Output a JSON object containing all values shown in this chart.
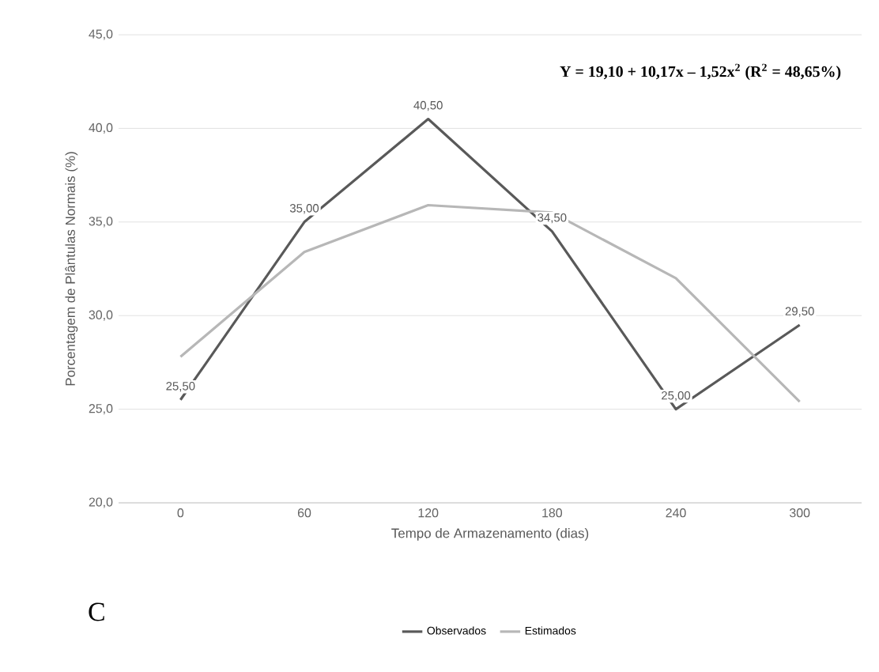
{
  "chart_data": {
    "type": "line",
    "xlabel": "Tempo de Armazenamento (dias)",
    "ylabel": "Porcentagem de Plântulas Normais (%)",
    "categories": [
      "0",
      "60",
      "120",
      "180",
      "240",
      "300"
    ],
    "series": [
      {
        "name": "Observados",
        "color": "#595959",
        "values": [
          25.5,
          35,
          40.5,
          34.5,
          25,
          29.5
        ],
        "value_labels": [
          "25,50",
          "35,00",
          "40,50",
          "34,50",
          "25,00",
          "29,50"
        ]
      },
      {
        "name": "Estimados",
        "color": "#b7b7b7",
        "values": [
          27.8,
          33.4,
          35.9,
          35.5,
          32.0,
          25.4
        ]
      }
    ],
    "ylim": [
      20,
      45
    ],
    "yticks": [
      {
        "value": 20,
        "label": "20,0"
      },
      {
        "value": 25,
        "label": "25,0"
      },
      {
        "value": 30,
        "label": "30,0"
      },
      {
        "value": 35,
        "label": "35,0"
      },
      {
        "value": 40,
        "label": "40,0"
      },
      {
        "value": 45,
        "label": "45,0"
      }
    ],
    "grid": "y",
    "legend": "bottom",
    "marker": "none",
    "line_style": "solid",
    "annotations": [
      "**Y = 19,10 + 10,17x – 1,52x$^{2}$ (R$^{2}$ = 48,65%)**",
      "C"
    ]
  }
}
